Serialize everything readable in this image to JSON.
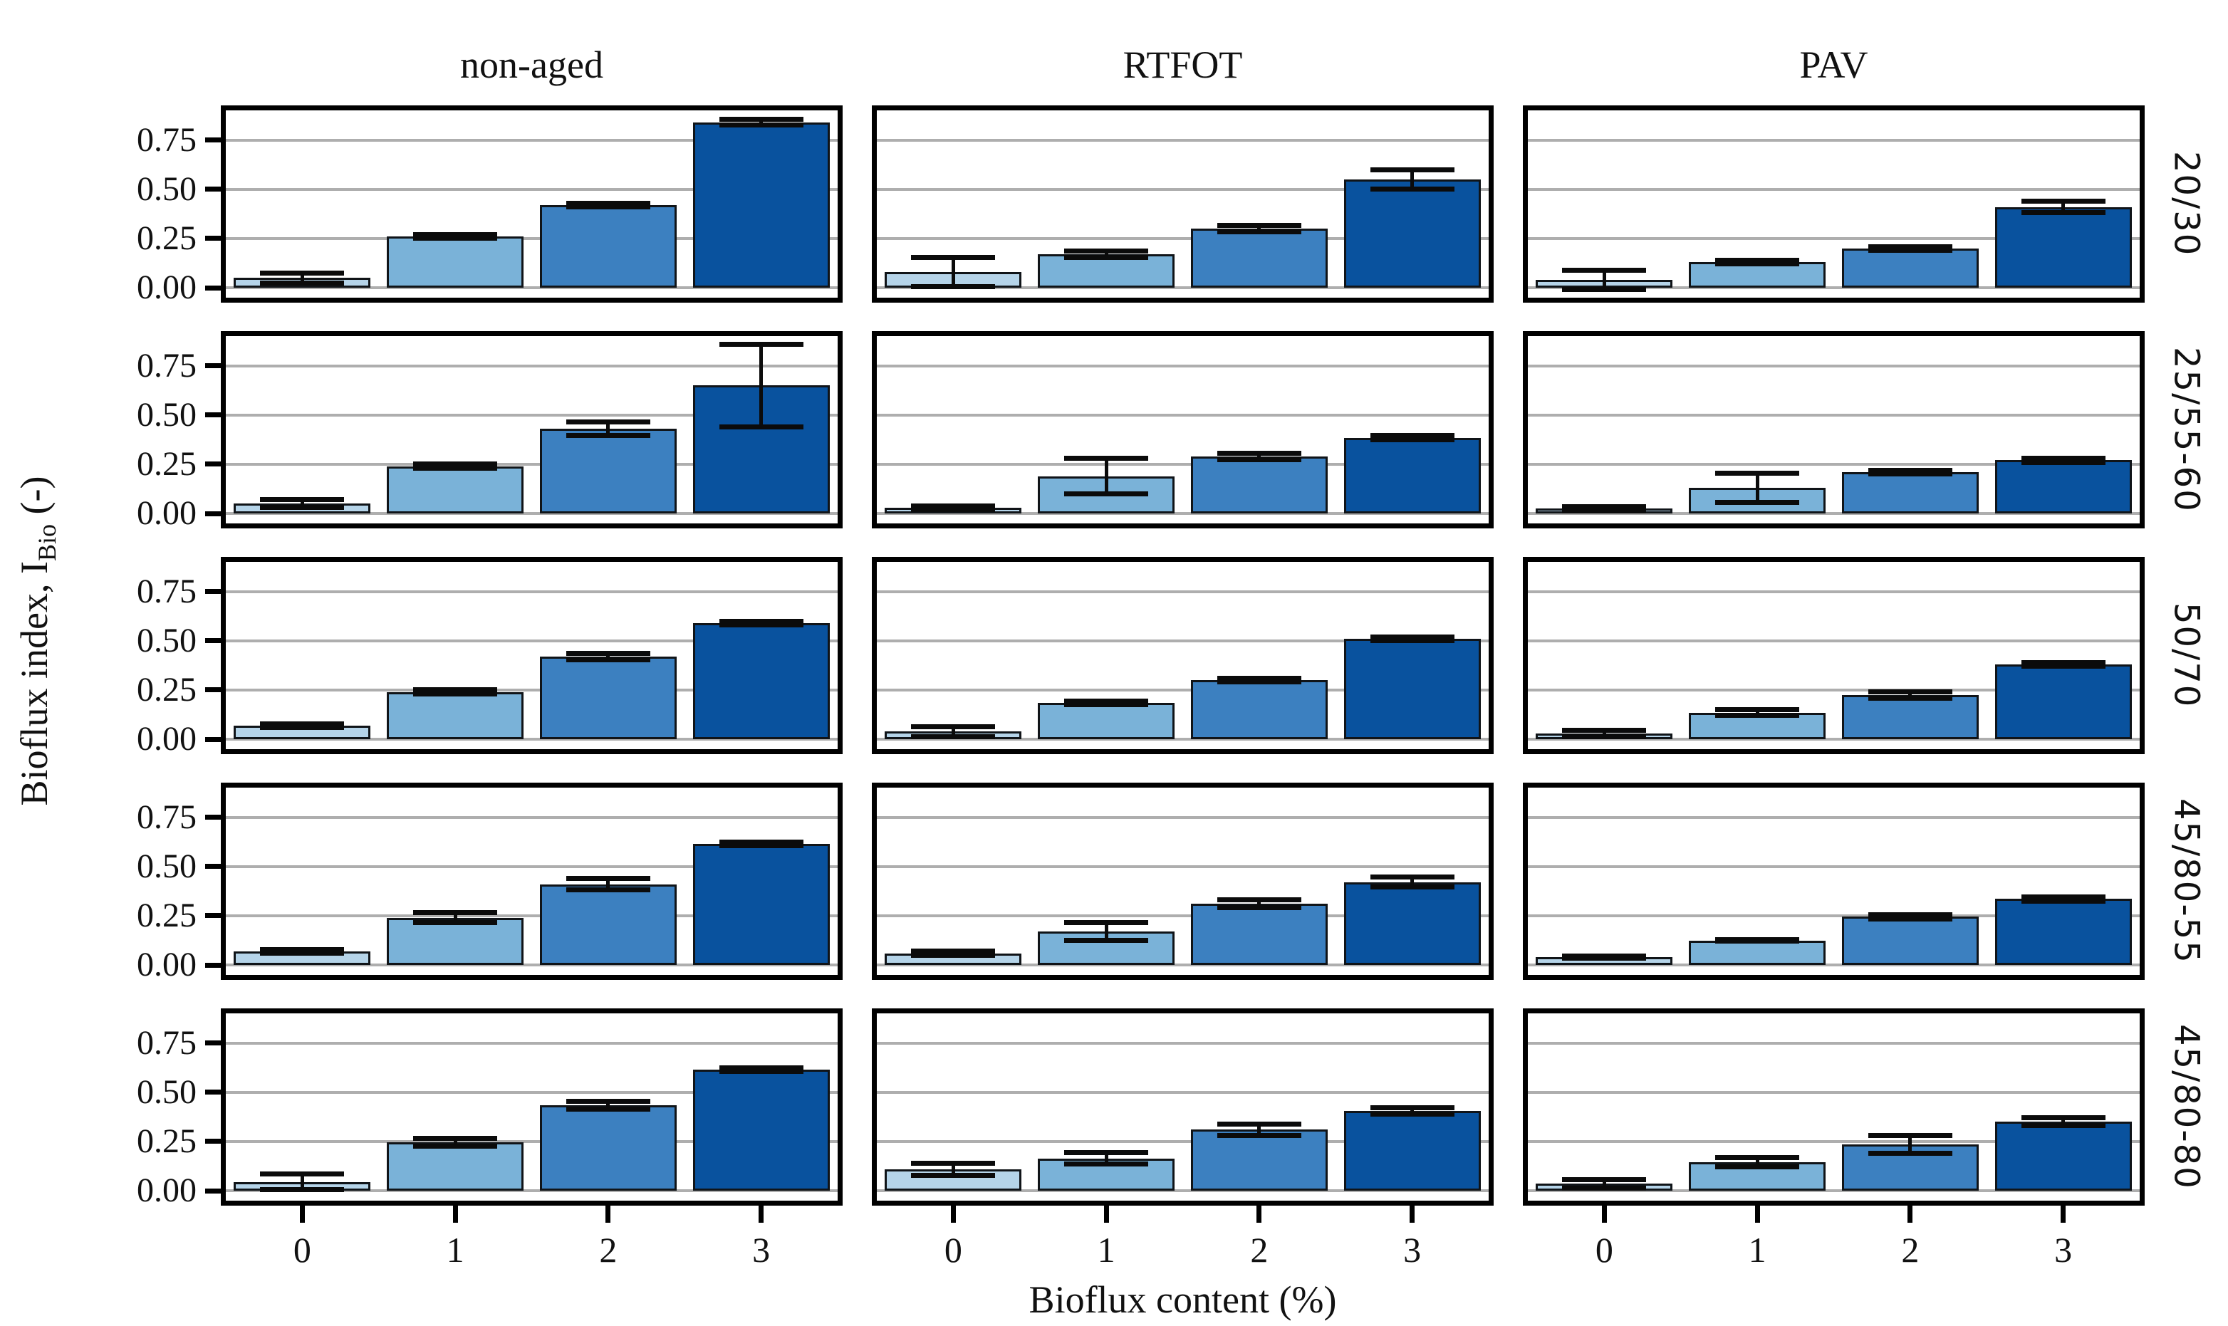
{
  "chart_data": {
    "type": "bar",
    "layout": "facet-grid 5 rows x 3 columns, shared axes, horizontal gridlines on, no legend",
    "xlabel": "Bioflux content (%)",
    "ylabel_prefix": "Bioflux index, I",
    "ylabel_sub": "Bio",
    "ylabel_suffix": " (-)",
    "categories": [
      "0",
      "1",
      "2",
      "3"
    ],
    "col_headers": [
      "non-aged",
      "RTFOT",
      "PAV"
    ],
    "row_headers": [
      "20/30",
      "25/55-60",
      "50/70",
      "45/80-55",
      "45/80-80"
    ],
    "ytick_labels": [
      "0.00",
      "0.25",
      "0.50",
      "0.75"
    ],
    "ytick_values": [
      0.0,
      0.25,
      0.5,
      0.75
    ],
    "ylim": [
      -0.05,
      0.9
    ],
    "bar_colors": [
      "#b5d4e9",
      "#7ab2d8",
      "#3c80c0",
      "#09529e"
    ],
    "bar_edge_color": "#101418",
    "error_bar_color": "#0b0b0b",
    "rows": [
      {
        "label": "20/30",
        "cells": [
          {
            "col": "non-aged",
            "values": [
              0.05,
              0.26,
              0.42,
              0.84
            ],
            "errors": [
              0.025,
              0.01,
              0.01,
              0.015
            ]
          },
          {
            "col": "RTFOT",
            "values": [
              0.08,
              0.17,
              0.3,
              0.55
            ],
            "errors": [
              0.075,
              0.015,
              0.015,
              0.05
            ]
          },
          {
            "col": "PAV",
            "values": [
              0.04,
              0.13,
              0.2,
              0.41
            ],
            "errors": [
              0.05,
              0.01,
              0.01,
              0.03
            ]
          }
        ]
      },
      {
        "label": "25/55-60",
        "cells": [
          {
            "col": "non-aged",
            "values": [
              0.05,
              0.24,
              0.43,
              0.65
            ],
            "errors": [
              0.02,
              0.01,
              0.035,
              0.21
            ]
          },
          {
            "col": "RTFOT",
            "values": [
              0.03,
              0.19,
              0.29,
              0.385
            ],
            "errors": [
              0.01,
              0.09,
              0.015,
              0.01
            ]
          },
          {
            "col": "PAV",
            "values": [
              0.025,
              0.13,
              0.21,
              0.27
            ],
            "errors": [
              0.01,
              0.075,
              0.01,
              0.01
            ]
          }
        ]
      },
      {
        "label": "50/70",
        "cells": [
          {
            "col": "non-aged",
            "values": [
              0.07,
              0.24,
              0.42,
              0.59
            ],
            "errors": [
              0.01,
              0.01,
              0.015,
              0.01
            ]
          },
          {
            "col": "RTFOT",
            "values": [
              0.04,
              0.185,
              0.3,
              0.51
            ],
            "errors": [
              0.025,
              0.01,
              0.01,
              0.01
            ]
          },
          {
            "col": "PAV",
            "values": [
              0.03,
              0.135,
              0.225,
              0.38
            ],
            "errors": [
              0.015,
              0.015,
              0.015,
              0.01
            ]
          }
        ]
      },
      {
        "label": "45/80-55",
        "cells": [
          {
            "col": "non-aged",
            "values": [
              0.07,
              0.24,
              0.41,
              0.615
            ],
            "errors": [
              0.01,
              0.025,
              0.03,
              0.01
            ]
          },
          {
            "col": "RTFOT",
            "values": [
              0.06,
              0.17,
              0.31,
              0.42
            ],
            "errors": [
              0.01,
              0.045,
              0.02,
              0.025
            ]
          },
          {
            "col": "PAV",
            "values": [
              0.04,
              0.125,
              0.245,
              0.335
            ],
            "errors": [
              0.005,
              0.005,
              0.01,
              0.01
            ]
          }
        ]
      },
      {
        "label": "45/80-80",
        "cells": [
          {
            "col": "non-aged",
            "values": [
              0.045,
              0.245,
              0.435,
              0.615
            ],
            "errors": [
              0.04,
              0.02,
              0.02,
              0.01
            ]
          },
          {
            "col": "RTFOT",
            "values": [
              0.11,
              0.165,
              0.31,
              0.405
            ],
            "errors": [
              0.03,
              0.03,
              0.03,
              0.015
            ]
          },
          {
            "col": "PAV",
            "values": [
              0.035,
              0.145,
              0.235,
              0.35
            ],
            "errors": [
              0.02,
              0.025,
              0.045,
              0.02
            ]
          }
        ]
      }
    ]
  }
}
